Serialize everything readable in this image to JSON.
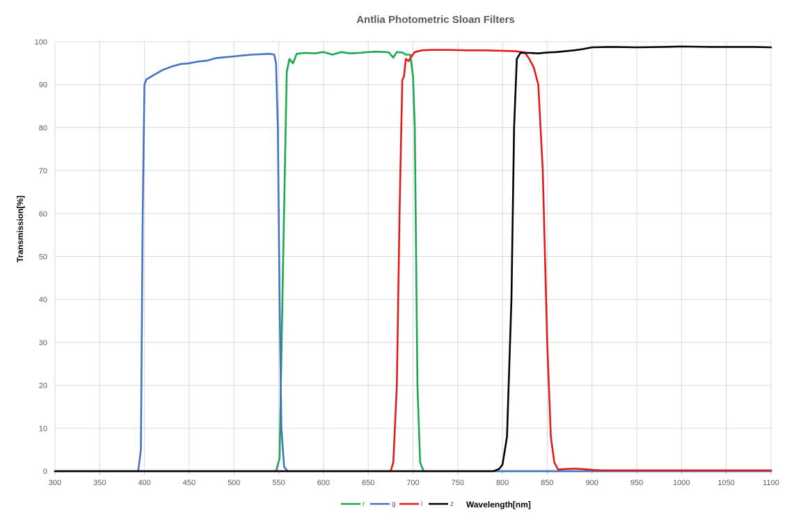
{
  "chart_data": {
    "type": "line",
    "title": "Antlia Photometric Sloan Filters",
    "xlabel": "Wavelength[nm]",
    "ylabel": "Transmission[%]",
    "xlim": [
      300,
      1100
    ],
    "ylim": [
      0,
      100
    ],
    "x_ticks": [
      300,
      350,
      400,
      450,
      500,
      550,
      600,
      650,
      700,
      750,
      800,
      850,
      900,
      950,
      1000,
      1050,
      1100
    ],
    "y_ticks": [
      0,
      10,
      20,
      30,
      40,
      50,
      60,
      70,
      80,
      90,
      100
    ],
    "grid": true,
    "legend_position": "bottom",
    "series": [
      {
        "name": "r",
        "color": "#1aa84f",
        "points": [
          [
            300,
            0
          ],
          [
            547,
            0
          ],
          [
            551,
            3
          ],
          [
            555,
            50
          ],
          [
            559,
            93
          ],
          [
            562,
            96
          ],
          [
            566,
            95
          ],
          [
            570,
            97.2
          ],
          [
            580,
            97.4
          ],
          [
            590,
            97.3
          ],
          [
            600,
            97.6
          ],
          [
            610,
            97.0
          ],
          [
            620,
            97.6
          ],
          [
            630,
            97.3
          ],
          [
            640,
            97.4
          ],
          [
            650,
            97.6
          ],
          [
            660,
            97.7
          ],
          [
            670,
            97.6
          ],
          [
            673,
            97.5
          ],
          [
            678,
            96.3
          ],
          [
            682,
            97.6
          ],
          [
            688,
            97.5
          ],
          [
            692,
            97.0
          ],
          [
            697,
            97.0
          ],
          [
            700,
            92
          ],
          [
            702,
            80
          ],
          [
            705,
            20
          ],
          [
            708,
            2
          ],
          [
            712,
            0
          ],
          [
            1100,
            0
          ]
        ]
      },
      {
        "name": "g",
        "color": "#4472c4",
        "points": [
          [
            300,
            0
          ],
          [
            393,
            0
          ],
          [
            396,
            5
          ],
          [
            398,
            60
          ],
          [
            400,
            90
          ],
          [
            402,
            91.2
          ],
          [
            410,
            92.2
          ],
          [
            420,
            93.4
          ],
          [
            430,
            94.2
          ],
          [
            440,
            94.8
          ],
          [
            450,
            95.0
          ],
          [
            460,
            95.4
          ],
          [
            470,
            95.6
          ],
          [
            480,
            96.2
          ],
          [
            490,
            96.4
          ],
          [
            500,
            96.6
          ],
          [
            510,
            96.8
          ],
          [
            520,
            97.0
          ],
          [
            530,
            97.1
          ],
          [
            540,
            97.2
          ],
          [
            545,
            97.0
          ],
          [
            547,
            95
          ],
          [
            549,
            80
          ],
          [
            551,
            40
          ],
          [
            553,
            10
          ],
          [
            556,
            1
          ],
          [
            560,
            0
          ],
          [
            1100,
            0
          ]
        ]
      },
      {
        "name": "i",
        "color": "#e31a1c",
        "points": [
          [
            300,
            0
          ],
          [
            675,
            0
          ],
          [
            678,
            2
          ],
          [
            682,
            20
          ],
          [
            685,
            60
          ],
          [
            688,
            91
          ],
          [
            690,
            92
          ],
          [
            692,
            96
          ],
          [
            695,
            95.5
          ],
          [
            698,
            96.5
          ],
          [
            702,
            97.6
          ],
          [
            710,
            98.0
          ],
          [
            720,
            98.1
          ],
          [
            740,
            98.1
          ],
          [
            760,
            98.0
          ],
          [
            780,
            98.0
          ],
          [
            800,
            97.9
          ],
          [
            815,
            97.8
          ],
          [
            825,
            97.5
          ],
          [
            830,
            96
          ],
          [
            835,
            94
          ],
          [
            840,
            90
          ],
          [
            845,
            70
          ],
          [
            850,
            30
          ],
          [
            854,
            8
          ],
          [
            858,
            2
          ],
          [
            862,
            0.4
          ],
          [
            870,
            0.5
          ],
          [
            880,
            0.6
          ],
          [
            890,
            0.5
          ],
          [
            900,
            0.3
          ],
          [
            910,
            0.2
          ],
          [
            1100,
            0.2
          ]
        ]
      },
      {
        "name": "z",
        "color": "#000000",
        "points": [
          [
            300,
            0
          ],
          [
            790,
            0
          ],
          [
            796,
            0.5
          ],
          [
            800,
            1.5
          ],
          [
            805,
            8
          ],
          [
            810,
            40
          ],
          [
            813,
            80
          ],
          [
            816,
            96
          ],
          [
            820,
            97.4
          ],
          [
            830,
            97.4
          ],
          [
            840,
            97.3
          ],
          [
            850,
            97.5
          ],
          [
            860,
            97.6
          ],
          [
            870,
            97.8
          ],
          [
            880,
            98.0
          ],
          [
            890,
            98.3
          ],
          [
            900,
            98.7
          ],
          [
            920,
            98.8
          ],
          [
            950,
            98.7
          ],
          [
            980,
            98.8
          ],
          [
            1000,
            98.9
          ],
          [
            1030,
            98.8
          ],
          [
            1060,
            98.8
          ],
          [
            1080,
            98.8
          ],
          [
            1100,
            98.7
          ]
        ]
      }
    ]
  }
}
